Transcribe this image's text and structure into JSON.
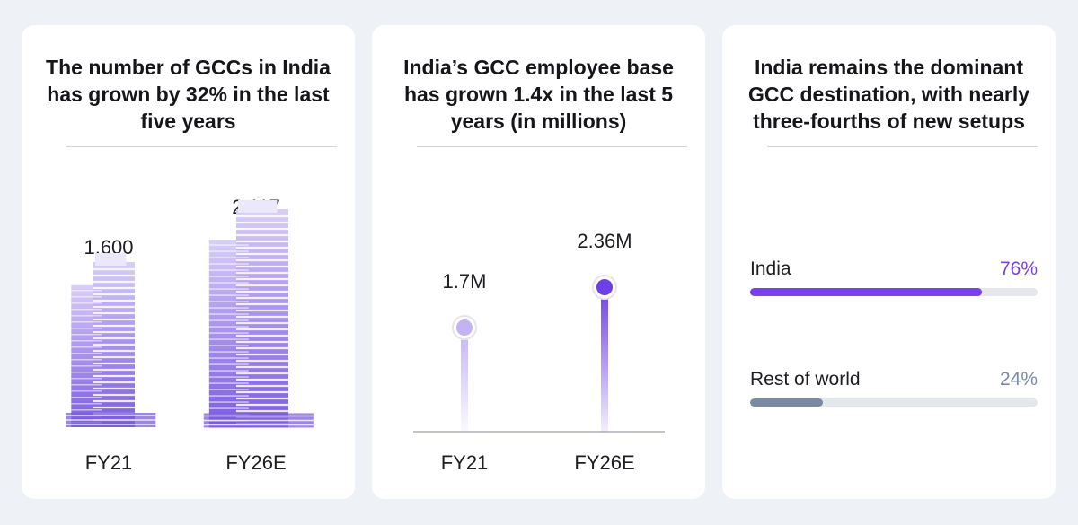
{
  "chart_data": [
    {
      "type": "bar",
      "title": "The number of GCCs in India has grown by 32% in the last five years",
      "categories": [
        "FY21",
        "FY26E"
      ],
      "values": [
        1600,
        2117
      ],
      "value_labels": [
        "1,600",
        "2,117"
      ],
      "colors": {
        "main": "#7c5ce0",
        "light": "#b3a2f0"
      }
    },
    {
      "type": "bar",
      "title": "India’s GCC employee base has grown 1.4x in the last 5 years (in millions)",
      "categories": [
        "FY21",
        "FY26E"
      ],
      "values": [
        1.7,
        2.36
      ],
      "value_labels": [
        "1.7M",
        "2.36M"
      ],
      "colors": {
        "FY21": "#c4b3f3",
        "FY26E": "#6d3fe6"
      }
    },
    {
      "type": "bar",
      "orientation": "horizontal",
      "title": "India remains the dominant GCC destination, with nearly three-fourths of new setups",
      "categories": [
        "India",
        "Rest of world"
      ],
      "values": [
        76,
        24
      ],
      "value_labels": [
        "76%",
        "24%"
      ],
      "xlim": [
        0,
        100
      ],
      "colors": {
        "India": "#7a3ff0",
        "Rest of world": "#7a8aa3",
        "track": "#e4e7ec"
      }
    }
  ]
}
